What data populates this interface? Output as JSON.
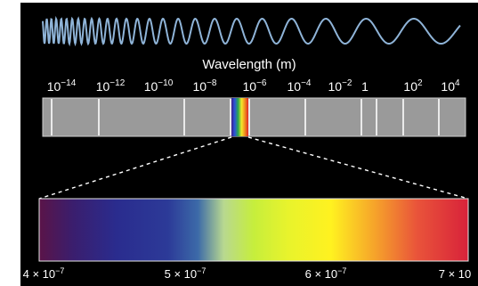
{
  "title": "Wavelength (m)",
  "scale_ticks": [
    {
      "base": "10",
      "exp": "−14"
    },
    {
      "base": "10",
      "exp": "−12"
    },
    {
      "base": "10",
      "exp": "−10"
    },
    {
      "base": "10",
      "exp": "−8"
    },
    {
      "base": "10",
      "exp": "−6"
    },
    {
      "base": "10",
      "exp": "−4"
    },
    {
      "base": "10",
      "exp": "−2"
    },
    {
      "base": "1",
      "exp": ""
    },
    {
      "base": "10",
      "exp": "2"
    },
    {
      "base": "10",
      "exp": "4"
    }
  ],
  "visible_labels": [
    {
      "base": "4 × 10",
      "exp": "−7"
    },
    {
      "base": "5 × 10",
      "exp": "−7"
    },
    {
      "base": "6 × 10",
      "exp": "−7"
    },
    {
      "base": "7 × 10",
      "exp": ""
    }
  ],
  "colors": {
    "background": "#000000",
    "wave": "#8fb4d8",
    "bar": "#9a9a9a",
    "divider": "#ffffff"
  }
}
